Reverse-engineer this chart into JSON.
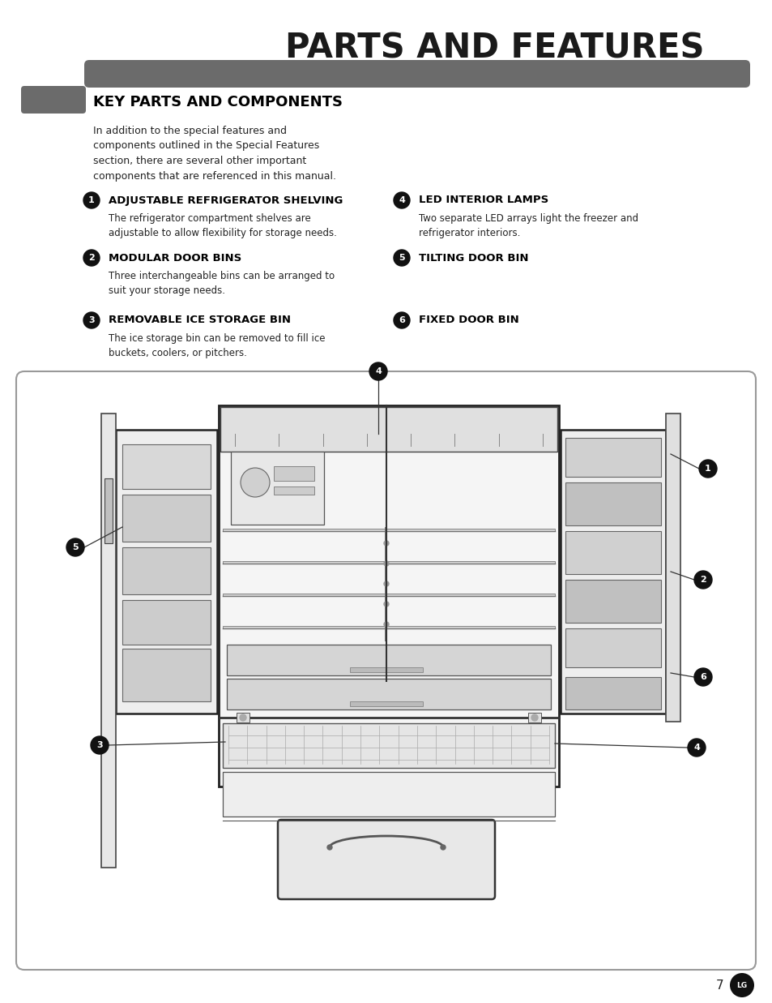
{
  "title": "PARTS AND FEATURES",
  "section_title": "KEY PARTS AND COMPONENTS",
  "intro_text": "In addition to the special features and\ncomponents outlined in the Special Features\nsection, there are several other important\ncomponents that are referenced in this manual.",
  "items_left": [
    {
      "num": "1",
      "heading": "ADJUSTABLE REFRIGERATOR SHELVING",
      "body": "The refrigerator compartment shelves are\nadjustable to allow flexibility for storage needs."
    },
    {
      "num": "2",
      "heading": "MODULAR DOOR BINS",
      "body": "Three interchangeable bins can be arranged to\nsuit your storage needs."
    },
    {
      "num": "3",
      "heading": "REMOVABLE ICE STORAGE BIN",
      "body": "The ice storage bin can be removed to fill ice\nbuckets, coolers, or pitchers."
    }
  ],
  "items_right": [
    {
      "num": "4",
      "heading": "LED INTERIOR LAMPS",
      "body": "Two separate LED arrays light the freezer and\nrefrigerator interiors."
    },
    {
      "num": "5",
      "heading": "TILTING DOOR BIN",
      "body": ""
    },
    {
      "num": "6",
      "heading": "FIXED DOOR BIN",
      "body": ""
    }
  ],
  "page_number": "7",
  "bg_color": "#ffffff",
  "title_color": "#1a1a1a",
  "section_bg": "#6b6b6b",
  "section_title_color": "#000000",
  "body_text_color": "#222222",
  "heading_color": "#000000",
  "circle_color": "#111111",
  "circle_text_color": "#ffffff",
  "diagram_border": "#999999",
  "diagram_bg": "#ffffff"
}
